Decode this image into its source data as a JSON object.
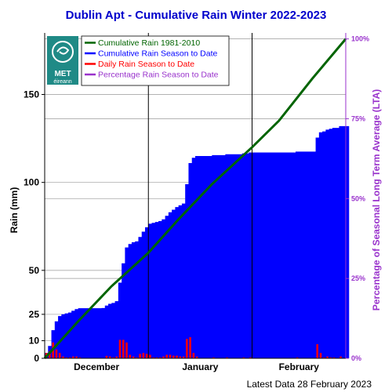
{
  "chart_data": {
    "type": "area",
    "title": "Dublin Apt - Cumulative Rain Winter 2022-2023",
    "ylabel": "Rain (mm)",
    "ylabel_right": "Percentage  of Seasonal Long Term Average (LTA)",
    "ylim": [
      0,
      185
    ],
    "yticks": [
      0,
      10,
      25,
      50,
      100,
      150
    ],
    "ytick_labels": [
      "0",
      "10",
      "25",
      "50",
      "100",
      "150"
    ],
    "right_ticks": [
      {
        "value": 0,
        "label": "0%"
      },
      {
        "value": 45.4,
        "label": "25%"
      },
      {
        "value": 90.8,
        "label": "50%"
      },
      {
        "value": 136.2,
        "label": "75%"
      },
      {
        "value": 181.6,
        "label": "100%"
      }
    ],
    "month_labels": [
      "December",
      "January",
      "February"
    ],
    "month_label_days": [
      15.5,
      46.5,
      76
    ],
    "month_boundaries": [
      31,
      62
    ],
    "xlim": [
      0,
      90
    ],
    "grid": true,
    "legend_position": "top-left",
    "series": [
      {
        "name": "Cumulative Rain 1981-2010",
        "color": "#006400",
        "kind": "line",
        "x": [
          0,
          10,
          20,
          31,
          40,
          50,
          62,
          70,
          80,
          90
        ],
        "y": [
          0,
          21,
          41,
          60,
          79,
          99,
          120,
          135,
          159,
          181.6
        ]
      },
      {
        "name": "Cumulative Rain Season to Date",
        "color": "#0000ff",
        "kind": "area",
        "values": [
          3,
          7,
          16,
          21,
          24,
          25,
          25.5,
          26,
          27,
          28,
          28.5,
          28.5,
          28.5,
          28.5,
          28.5,
          28.5,
          28.5,
          28.6,
          30,
          31,
          31.5,
          32.5,
          43,
          54,
          63,
          65,
          66,
          66.5,
          69,
          72,
          74.5,
          76.5,
          77,
          77.5,
          78,
          79,
          81,
          83,
          84.5,
          86,
          87,
          88,
          99,
          111,
          114,
          115,
          115,
          115,
          115,
          115,
          115.5,
          115.5,
          115.5,
          115.5,
          116,
          116,
          116,
          116,
          116,
          116.5,
          116.5,
          117,
          117,
          117,
          117,
          117,
          117,
          117,
          117,
          117,
          117,
          117,
          117,
          117,
          117,
          117.5,
          117.5,
          117.5,
          117.5,
          117.5,
          117.5,
          125.5,
          128.5,
          129,
          130,
          130.5,
          131,
          131,
          132,
          132,
          132
        ]
      },
      {
        "name": "Daily Rain Season to Date",
        "color": "#ff0000",
        "kind": "bar",
        "values": [
          3,
          4,
          9,
          5,
          3,
          1,
          0.5,
          0.5,
          1,
          1,
          0.5,
          0,
          0,
          0,
          0,
          0,
          0,
          0.1,
          1.4,
          1,
          0.5,
          1,
          10.5,
          10.5,
          9,
          2,
          1,
          0.5,
          2.5,
          3,
          2.5,
          2,
          0.5,
          0.5,
          0.5,
          1,
          2,
          2,
          1.5,
          1.5,
          1,
          1,
          11,
          12,
          3,
          1,
          0,
          0,
          0,
          0,
          0.5,
          0,
          0,
          0,
          0.5,
          0,
          0,
          0,
          0,
          0.5,
          0,
          0.5,
          0,
          0,
          0,
          0,
          0,
          0,
          0,
          0,
          0,
          0,
          0,
          0,
          0,
          0.5,
          0,
          0,
          0,
          0,
          0,
          8,
          3,
          0.5,
          1,
          0.5,
          0.5,
          0,
          1,
          0,
          0
        ]
      },
      {
        "name": "Percentage Rain Season to Date",
        "color": "#9932cc",
        "kind": "legend-only"
      }
    ],
    "footer": "Latest Data 28 February 2023"
  },
  "logo": {
    "text_top": "MET",
    "text_bottom": "éireann"
  }
}
